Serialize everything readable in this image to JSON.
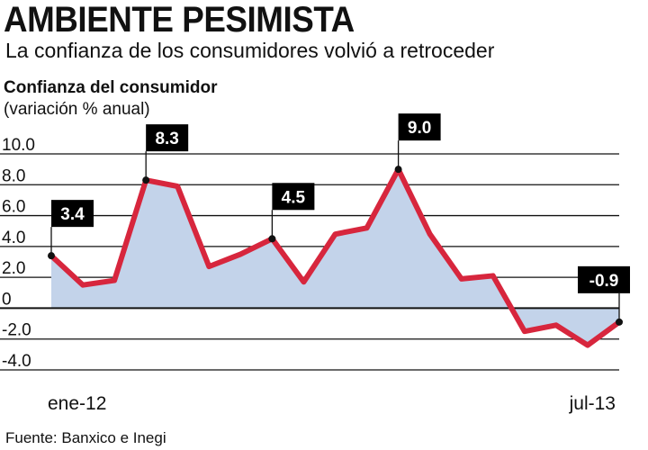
{
  "header": {
    "title": "AMBIENTE PESIMISTA",
    "subtitle": "La confianza de los consumidores volvió a retroceder"
  },
  "footer": {
    "source": "Fuente: Banxico e Inegi"
  },
  "colors": {
    "line": "#d7263d",
    "area": "#c3d3ea",
    "grid": "#111111",
    "label_bg": "#000000"
  },
  "chart_data": {
    "type": "area",
    "title": "AMBIENTE PESIMISTA",
    "subtitle": "La confianza de los consumidores volvió a retroceder",
    "ylabel": "Confianza del consumidor",
    "yunit": "(variación % anual)",
    "ylim": [
      -4.0,
      10.0
    ],
    "yticks": [
      {
        "value": 10.0,
        "label": "10.0"
      },
      {
        "value": 8.0,
        "label": "8.0"
      },
      {
        "value": 6.0,
        "label": "6.0"
      },
      {
        "value": 4.0,
        "label": "4.0"
      },
      {
        "value": 2.0,
        "label": "2.0"
      },
      {
        "value": 0,
        "label": "0"
      },
      {
        "value": -2.0,
        "label": "-2.0"
      },
      {
        "value": -4.0,
        "label": "-4.0"
      }
    ],
    "x": [
      "ene-12",
      "feb-12",
      "mar-12",
      "abr-12",
      "may-12",
      "jun-12",
      "jul-12",
      "ago-12",
      "sep-12",
      "oct-12",
      "nov-12",
      "dic-12",
      "ene-13",
      "feb-13",
      "mar-13",
      "abr-13",
      "may-13",
      "jun-13",
      "jul-13"
    ],
    "xtick_labels": [
      {
        "index": 0,
        "label": "ene-12"
      },
      {
        "index": 18,
        "label": "jul-13"
      }
    ],
    "values": [
      3.4,
      1.5,
      1.8,
      8.3,
      7.9,
      2.7,
      3.5,
      4.5,
      1.7,
      4.8,
      5.2,
      9.0,
      4.8,
      1.9,
      2.1,
      -1.5,
      -1.1,
      -2.4,
      -0.9
    ],
    "data_labels": [
      {
        "index": 0,
        "label": "3.4"
      },
      {
        "index": 3,
        "label": "8.3"
      },
      {
        "index": 7,
        "label": "4.5"
      },
      {
        "index": 11,
        "label": "9.0"
      },
      {
        "index": 18,
        "label": "-0.9"
      }
    ],
    "grid": true,
    "legend": "none"
  }
}
